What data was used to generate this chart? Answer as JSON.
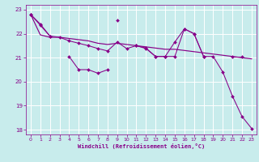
{
  "xlabel": "Windchill (Refroidissement éolien,°C)",
  "bg_color": "#c8ecec",
  "line_color": "#880088",
  "grid_color": "#ffffff",
  "x_values": [
    0,
    1,
    2,
    3,
    4,
    5,
    6,
    7,
    8,
    9,
    10,
    11,
    12,
    13,
    14,
    15,
    16,
    17,
    18,
    19,
    20,
    21,
    22,
    23
  ],
  "series_zigzag": [
    22.8,
    null,
    null,
    null,
    21.05,
    20.5,
    20.5,
    20.35,
    20.5,
    null,
    null,
    null,
    null,
    null,
    null,
    null,
    null,
    null,
    null,
    null,
    null,
    null,
    null,
    null
  ],
  "series_top": [
    22.8,
    22.4,
    21.9,
    null,
    null,
    null,
    null,
    null,
    null,
    22.55,
    null,
    21.5,
    21.4,
    21.05,
    21.05,
    21.65,
    22.2,
    22.0,
    21.05,
    null,
    null,
    21.05,
    21.05,
    null
  ],
  "series_mid": [
    22.8,
    21.95,
    21.85,
    21.85,
    21.8,
    21.75,
    21.7,
    21.6,
    21.55,
    21.6,
    21.55,
    21.5,
    21.45,
    21.4,
    21.35,
    21.35,
    21.3,
    21.25,
    21.2,
    21.15,
    21.1,
    21.05,
    21.0,
    20.95
  ],
  "series_diag": [
    22.8,
    22.35,
    21.9,
    21.85,
    21.7,
    21.6,
    21.5,
    21.38,
    21.28,
    21.65,
    21.38,
    21.5,
    21.38,
    21.05,
    21.05,
    21.05,
    22.2,
    22.0,
    21.05,
    21.05,
    20.4,
    19.4,
    18.55,
    18.05
  ],
  "ylim": [
    17.8,
    23.2
  ],
  "xlim": [
    -0.5,
    23.5
  ],
  "yticks": [
    18,
    19,
    20,
    21,
    22,
    23
  ],
  "xticks": [
    0,
    1,
    2,
    3,
    4,
    5,
    6,
    7,
    8,
    9,
    10,
    11,
    12,
    13,
    14,
    15,
    16,
    17,
    18,
    19,
    20,
    21,
    22,
    23
  ]
}
